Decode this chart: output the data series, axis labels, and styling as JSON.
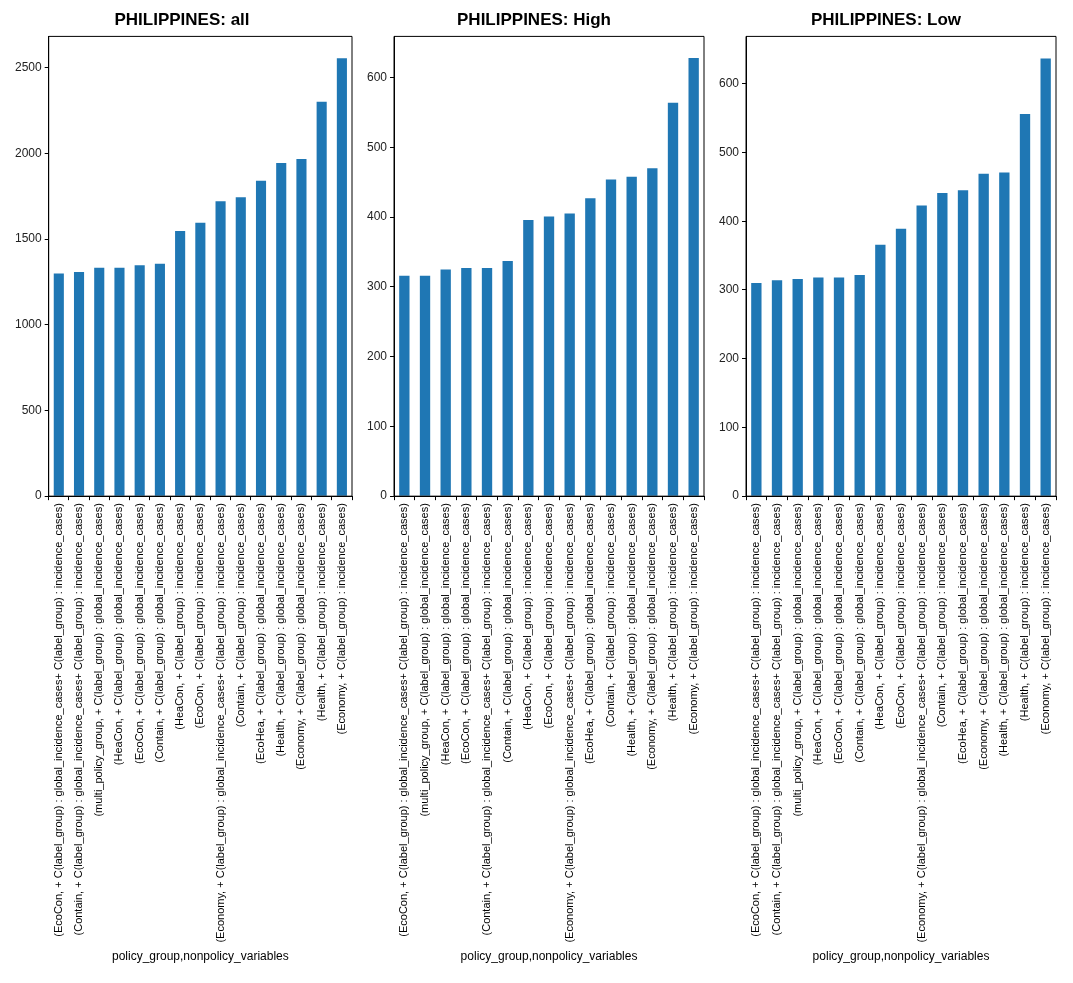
{
  "chart_data": [
    {
      "type": "bar",
      "title": "PHILIPPINES: all",
      "xlabel": "policy_group,nonpolicy_variables",
      "color": "#1f77b4",
      "grid": false,
      "ylim": [
        0,
        2683
      ],
      "yticks": [
        0,
        500,
        1000,
        1500,
        2000,
        2500
      ],
      "categories": [
        "(EcoCon, + C(label_group) : global_incidence_cases+ C(label_group) : incidence_cases)",
        "(Contain, + C(label_group) : global_incidence_cases+ C(label_group) : incidence_cases)",
        "(multi_policy_group, + C(label_group) : global_incidence_cases)",
        "(HeaCon, + C(label_group) : global_incidence_cases)",
        "(EcoCon, + C(label_group) : global_incidence_cases)",
        "(Contain, + C(label_group) : global_incidence_cases)",
        "(HeaCon, + C(label_group) : incidence_cases)",
        "(EcoCon, + C(label_group) : incidence_cases)",
        "(Economy, + C(label_group) : global_incidence_cases+ C(label_group) : incidence_cases)",
        "(Contain, + C(label_group) : incidence_cases)",
        "(EcoHea, + C(label_group) : global_incidence_cases)",
        "(Health, + C(label_group) : global_incidence_cases)",
        "(Economy, + C(label_group) : global_incidence_cases)",
        "(Health, + C(label_group) : incidence_cases)",
        "(Economy, + C(label_group) : incidence_cases)"
      ],
      "values": [
        1300,
        1308,
        1333,
        1333,
        1348,
        1356,
        1547,
        1596,
        1721,
        1745,
        1841,
        1944,
        1968,
        2301,
        2556
      ]
    },
    {
      "type": "bar",
      "title": "PHILIPPINES: High",
      "xlabel": "policy_group,nonpolicy_variables",
      "color": "#1f77b4",
      "grid": false,
      "ylim": [
        0,
        659
      ],
      "yticks": [
        0,
        100,
        200,
        300,
        400,
        500,
        600
      ],
      "categories": [
        "(EcoCon, + C(label_group) : global_incidence_cases+ C(label_group) : incidence_cases)",
        "(multi_policy_group, + C(label_group) : global_incidence_cases)",
        "(HeaCon, + C(label_group) : global_incidence_cases)",
        "(EcoCon, + C(label_group) : global_incidence_cases)",
        "(Contain, + C(label_group) : global_incidence_cases+ C(label_group) : incidence_cases)",
        "(Contain, + C(label_group) : global_incidence_cases)",
        "(HeaCon, + C(label_group) : incidence_cases)",
        "(EcoCon, + C(label_group) : incidence_cases)",
        "(Economy, + C(label_group) : global_incidence_cases+ C(label_group) : incidence_cases)",
        "(EcoHea, + C(label_group) : global_incidence_cases)",
        "(Contain, + C(label_group) : incidence_cases)",
        "(Health, + C(label_group) : global_incidence_cases)",
        "(Economy, + C(label_group) : global_incidence_cases)",
        "(Health, + C(label_group) : incidence_cases)",
        "(Economy, + C(label_group) : incidence_cases)"
      ],
      "values": [
        316,
        316,
        325,
        327,
        327,
        337,
        396,
        401,
        405,
        427,
        454,
        458,
        470,
        564,
        628
      ]
    },
    {
      "type": "bar",
      "title": "PHILIPPINES: Low",
      "xlabel": "policy_group,nonpolicy_variables",
      "color": "#1f77b4",
      "grid": false,
      "ylim": [
        0,
        669
      ],
      "yticks": [
        0,
        100,
        200,
        300,
        400,
        500,
        600
      ],
      "categories": [
        "(EcoCon, + C(label_group) : global_incidence_cases+ C(label_group) : incidence_cases)",
        "(Contain, + C(label_group) : global_incidence_cases+ C(label_group) : incidence_cases)",
        "(multi_policy_group, + C(label_group) : global_incidence_cases)",
        "(HeaCon, + C(label_group) : global_incidence_cases)",
        "(EcoCon, + C(label_group) : global_incidence_cases)",
        "(Contain, + C(label_group) : global_incidence_cases)",
        "(HeaCon, + C(label_group) : incidence_cases)",
        "(EcoCon, + C(label_group) : incidence_cases)",
        "(Economy, + C(label_group) : global_incidence_cases+ C(label_group) : incidence_cases)",
        "(Contain, + C(label_group) : incidence_cases)",
        "(EcoHea, + C(label_group) : global_incidence_cases)",
        "(Economy, + C(label_group) : global_incidence_cases)",
        "(Health, + C(label_group) : global_incidence_cases)",
        "(Health, + C(label_group) : incidence_cases)",
        "(Economy, + C(label_group) : incidence_cases)"
      ],
      "values": [
        310,
        314,
        316,
        318,
        318,
        322,
        366,
        389,
        423,
        441,
        445,
        469,
        471,
        556,
        637
      ]
    }
  ]
}
